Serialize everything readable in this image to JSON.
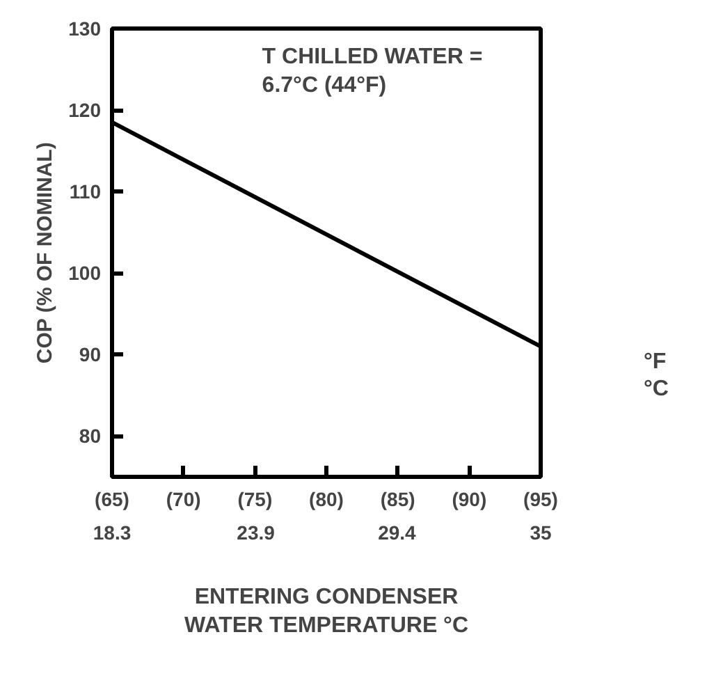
{
  "chart_data": {
    "type": "line",
    "ylabel": "COP (% OF NOMINAL)",
    "xlabel": "ENTERING CONDENSER\nWATER TEMPERATURE °C",
    "x": [
      65,
      95
    ],
    "series": [
      {
        "color": "#000000",
        "values": [
          118.5,
          91
        ]
      }
    ],
    "xlim": [
      65,
      95
    ],
    "xticks": [
      {
        "value": 65,
        "label": "(65)"
      },
      {
        "value": 70,
        "label": "(70)"
      },
      {
        "value": 75,
        "label": "(75)"
      },
      {
        "value": 80,
        "label": "(80)"
      },
      {
        "value": 85,
        "label": "(85)"
      },
      {
        "value": 90,
        "label": "(90)"
      },
      {
        "value": 95,
        "label": "(95)"
      }
    ],
    "x2lim": [
      18.3,
      35
    ],
    "x2ticks": [
      18.3,
      23.9,
      29.4,
      35
    ],
    "ylim": [
      75,
      130
    ],
    "yticks": [
      80,
      90,
      100,
      110,
      120,
      130
    ],
    "annotations": [
      "T CHILLED WATER =\n6.7°C (44°F)",
      "°F",
      "°C"
    ],
    "grid": false,
    "marker": "none",
    "line_style": "solid"
  }
}
